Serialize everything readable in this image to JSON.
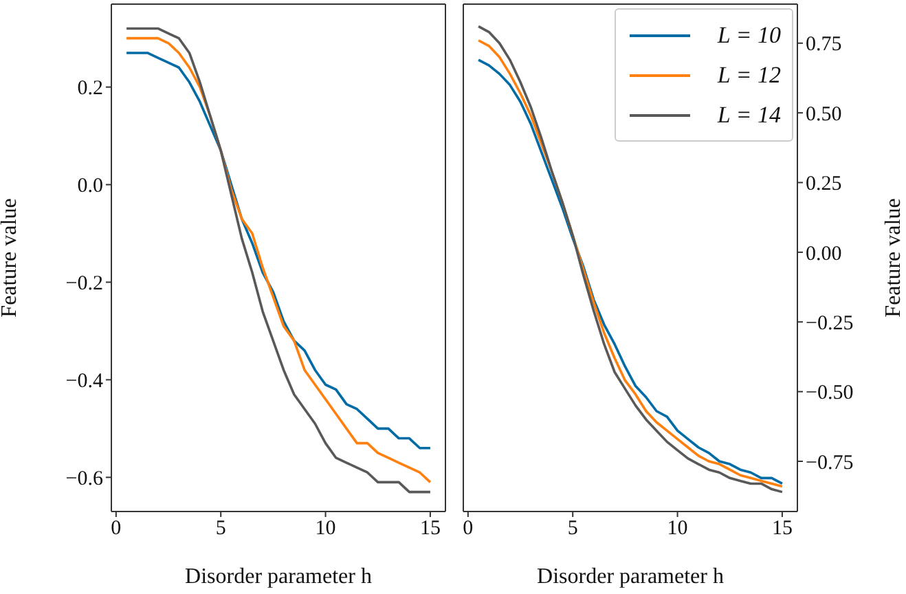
{
  "chart_data": [
    {
      "type": "line",
      "xlabel": "Disorder parameter h",
      "ylabel": "Feature value",
      "x": [
        0.5,
        1,
        1.5,
        2,
        2.5,
        3,
        3.5,
        4,
        4.5,
        5,
        5.5,
        6,
        6.5,
        7,
        7.5,
        8,
        8.5,
        9,
        9.5,
        10,
        10.5,
        11,
        11.5,
        12,
        12.5,
        13,
        13.5,
        14,
        14.5,
        15
      ],
      "xlim": [
        -0.225,
        15.725
      ],
      "xticks": [
        0,
        5,
        10,
        15
      ],
      "ylim": [
        -0.67,
        0.37
      ],
      "yticks": [
        {
          "value": 0.2,
          "label": "0.2"
        },
        {
          "value": 0,
          "label": "0.0"
        },
        {
          "value": -0.2,
          "label": "−0.2"
        },
        {
          "value": -0.4,
          "label": "−0.4"
        },
        {
          "value": -0.6,
          "label": "−0.6"
        }
      ],
      "grid": false,
      "legend": false,
      "series": [
        {
          "color": "#006ba4",
          "values": [
            0.27,
            0.27,
            0.27,
            0.26,
            0.25,
            0.24,
            0.21,
            0.17,
            0.12,
            0.07,
            0.0,
            -0.07,
            -0.12,
            -0.18,
            -0.22,
            -0.28,
            -0.32,
            -0.34,
            -0.38,
            -0.41,
            -0.42,
            -0.45,
            -0.46,
            -0.48,
            -0.5,
            -0.5,
            -0.52,
            -0.52,
            -0.54,
            -0.54
          ]
        },
        {
          "color": "#ff800e",
          "values": [
            0.3,
            0.3,
            0.3,
            0.3,
            0.29,
            0.27,
            0.24,
            0.2,
            0.14,
            0.07,
            -0.01,
            -0.07,
            -0.1,
            -0.17,
            -0.23,
            -0.29,
            -0.32,
            -0.38,
            -0.41,
            -0.44,
            -0.47,
            -0.5,
            -0.53,
            -0.53,
            -0.55,
            -0.56,
            -0.57,
            -0.58,
            -0.59,
            -0.61
          ]
        },
        {
          "color": "#595959",
          "values": [
            0.32,
            0.32,
            0.32,
            0.32,
            0.31,
            0.3,
            0.27,
            0.21,
            0.14,
            0.07,
            -0.02,
            -0.11,
            -0.18,
            -0.26,
            -0.32,
            -0.38,
            -0.43,
            -0.46,
            -0.49,
            -0.53,
            -0.56,
            -0.57,
            -0.58,
            -0.59,
            -0.61,
            -0.61,
            -0.61,
            -0.63,
            -0.63,
            -0.63
          ]
        }
      ]
    },
    {
      "type": "line",
      "xlabel": "Disorder parameter h",
      "y2label": "Feature value",
      "x": [
        0.5,
        1,
        1.5,
        2,
        2.5,
        3,
        3.5,
        4,
        4.5,
        5,
        5.5,
        6,
        6.5,
        7,
        7.5,
        8,
        8.5,
        9,
        9.5,
        10,
        10.5,
        11,
        11.5,
        12,
        12.5,
        13,
        13.5,
        14,
        14.5,
        15
      ],
      "xlim": [
        -0.225,
        15.725
      ],
      "xticks": [
        0,
        5,
        10,
        15
      ],
      "y2lim": [
        -0.93,
        0.89
      ],
      "y2ticks": [
        {
          "value": 0.75,
          "label": "0.75"
        },
        {
          "value": 0.5,
          "label": "0.50"
        },
        {
          "value": 0.25,
          "label": "0.25"
        },
        {
          "value": 0,
          "label": "0.00"
        },
        {
          "value": -0.25,
          "label": "−0.25"
        },
        {
          "value": -0.5,
          "label": "−0.50"
        },
        {
          "value": -0.75,
          "label": "−0.75"
        }
      ],
      "grid": false,
      "legend": "top right",
      "series": [
        {
          "name": "L = 10",
          "axis": "y2",
          "color": "#006ba4",
          "values": [
            0.69,
            0.67,
            0.64,
            0.6,
            0.54,
            0.46,
            0.36,
            0.26,
            0.16,
            0.05,
            -0.05,
            -0.17,
            -0.26,
            -0.33,
            -0.41,
            -0.48,
            -0.52,
            -0.57,
            -0.59,
            -0.64,
            -0.67,
            -0.7,
            -0.72,
            -0.75,
            -0.76,
            -0.78,
            -0.79,
            -0.81,
            -0.81,
            -0.83
          ]
        },
        {
          "name": "L = 12",
          "axis": "y2",
          "color": "#ff800e",
          "values": [
            0.76,
            0.74,
            0.7,
            0.64,
            0.57,
            0.49,
            0.39,
            0.29,
            0.18,
            0.06,
            -0.06,
            -0.18,
            -0.29,
            -0.38,
            -0.46,
            -0.51,
            -0.57,
            -0.61,
            -0.64,
            -0.67,
            -0.7,
            -0.73,
            -0.75,
            -0.76,
            -0.78,
            -0.8,
            -0.81,
            -0.82,
            -0.83,
            -0.84
          ]
        },
        {
          "name": "L = 14",
          "axis": "y2",
          "color": "#595959",
          "values": [
            0.81,
            0.79,
            0.75,
            0.69,
            0.61,
            0.52,
            0.41,
            0.29,
            0.18,
            0.06,
            -0.08,
            -0.21,
            -0.33,
            -0.43,
            -0.49,
            -0.55,
            -0.6,
            -0.64,
            -0.68,
            -0.71,
            -0.74,
            -0.76,
            -0.78,
            -0.79,
            -0.81,
            -0.82,
            -0.83,
            -0.83,
            -0.85,
            -0.86
          ]
        }
      ]
    }
  ]
}
